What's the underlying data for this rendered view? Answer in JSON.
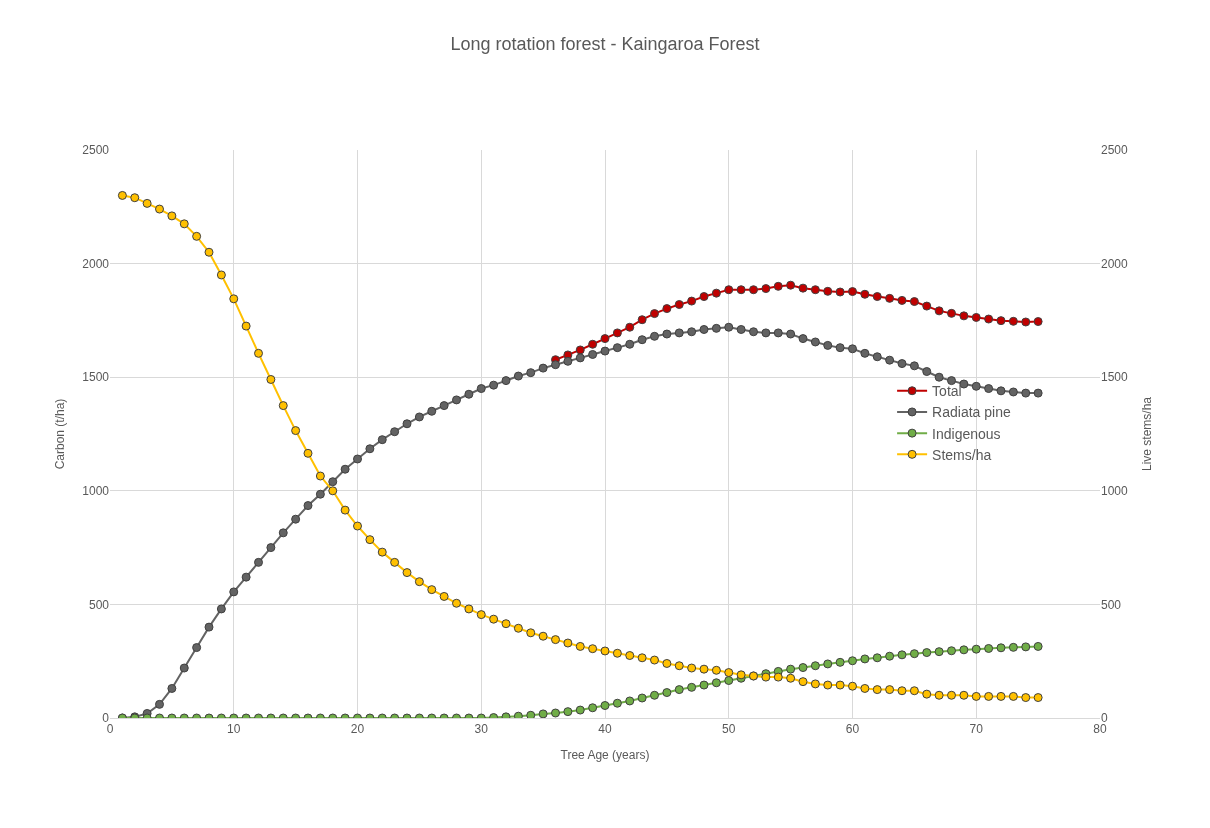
{
  "chart_data": {
    "type": "line",
    "title": "Long rotation forest - Kaingaroa Forest",
    "xlabel": "Tree Age (years)",
    "ylabel": "Carbon (t/ha)",
    "y2label": "Live stems/ha",
    "x": [
      1,
      2,
      3,
      4,
      5,
      6,
      7,
      8,
      9,
      10,
      11,
      12,
      13,
      14,
      15,
      16,
      17,
      18,
      19,
      20,
      21,
      22,
      23,
      24,
      25,
      26,
      27,
      28,
      29,
      30,
      31,
      32,
      33,
      34,
      35,
      36,
      37,
      38,
      39,
      40,
      41,
      42,
      43,
      44,
      45,
      46,
      47,
      48,
      49,
      50,
      51,
      52,
      53,
      54,
      55,
      56,
      57,
      58,
      59,
      60,
      61,
      62,
      63,
      64,
      65,
      66,
      67,
      68,
      69,
      70,
      71,
      72,
      73,
      74,
      75
    ],
    "series": [
      {
        "name": "Total",
        "color": "#c00000",
        "values": [
          null,
          null,
          null,
          null,
          null,
          null,
          null,
          null,
          null,
          null,
          null,
          null,
          null,
          null,
          null,
          null,
          null,
          null,
          null,
          null,
          null,
          null,
          null,
          null,
          null,
          null,
          null,
          null,
          null,
          null,
          null,
          null,
          null,
          null,
          null,
          1577,
          1598,
          1620,
          1645,
          1670,
          1695,
          1720,
          1753,
          1780,
          1802,
          1820,
          1835,
          1855,
          1870,
          1885,
          1885,
          1885,
          1890,
          1900,
          1905,
          1892,
          1885,
          1878,
          1875,
          1877,
          1865,
          1855,
          1847,
          1838,
          1833,
          1813,
          1792,
          1781,
          1770,
          1763,
          1756,
          1749,
          1746,
          1743,
          1745
        ]
      },
      {
        "name": "Radiata pine",
        "color": "#636363",
        "values": [
          0,
          5,
          20,
          60,
          130,
          220,
          310,
          400,
          480,
          555,
          620,
          685,
          750,
          815,
          875,
          935,
          985,
          1040,
          1095,
          1140,
          1185,
          1225,
          1260,
          1295,
          1325,
          1350,
          1375,
          1400,
          1425,
          1450,
          1465,
          1485,
          1505,
          1520,
          1540,
          1555,
          1570,
          1585,
          1600,
          1615,
          1630,
          1645,
          1665,
          1680,
          1690,
          1695,
          1700,
          1710,
          1715,
          1720,
          1710,
          1700,
          1695,
          1695,
          1690,
          1670,
          1655,
          1640,
          1630,
          1625,
          1605,
          1590,
          1575,
          1560,
          1550,
          1525,
          1500,
          1485,
          1470,
          1460,
          1450,
          1440,
          1435,
          1430,
          1430
        ]
      },
      {
        "name": "Indigenous",
        "color": "#70ad47",
        "values": [
          0,
          0,
          0,
          0,
          0,
          0,
          0,
          0,
          0,
          0,
          0,
          0,
          0,
          0,
          0,
          0,
          0,
          0,
          0,
          0,
          0,
          0,
          0,
          0,
          0,
          0,
          0,
          0,
          0,
          0,
          2,
          5,
          8,
          12,
          18,
          22,
          28,
          35,
          45,
          55,
          65,
          75,
          88,
          100,
          112,
          125,
          135,
          145,
          155,
          165,
          175,
          185,
          195,
          205,
          215,
          222,
          230,
          238,
          245,
          252,
          260,
          265,
          272,
          278,
          283,
          288,
          292,
          296,
          300,
          303,
          306,
          309,
          311,
          313,
          315
        ]
      },
      {
        "name": "Stems/ha",
        "color": "#ffc000",
        "axis": "y2",
        "values": [
          2300,
          2290,
          2265,
          2240,
          2210,
          2175,
          2120,
          2050,
          1950,
          1845,
          1725,
          1605,
          1490,
          1375,
          1265,
          1165,
          1065,
          1000,
          915,
          845,
          785,
          730,
          685,
          640,
          600,
          565,
          535,
          505,
          480,
          455,
          435,
          415,
          395,
          375,
          360,
          345,
          330,
          315,
          305,
          295,
          285,
          275,
          265,
          255,
          240,
          230,
          220,
          215,
          210,
          200,
          190,
          185,
          180,
          180,
          175,
          160,
          150,
          145,
          145,
          140,
          130,
          125,
          125,
          120,
          120,
          105,
          100,
          100,
          100,
          95,
          95,
          95,
          95,
          90,
          90
        ]
      }
    ],
    "xlim": [
      0,
      80
    ],
    "xticks": [
      0,
      10,
      20,
      30,
      40,
      50,
      60,
      70,
      80
    ],
    "ylim": [
      0,
      2500
    ],
    "yticks": [
      0,
      500,
      1000,
      1500,
      2000,
      2500
    ],
    "y2lim": [
      0,
      2500
    ],
    "y2ticks": [
      0,
      500,
      1000,
      1500,
      2000,
      2500
    ],
    "grid": true,
    "legend": "right",
    "marker": "circle",
    "line_style": "solid"
  }
}
